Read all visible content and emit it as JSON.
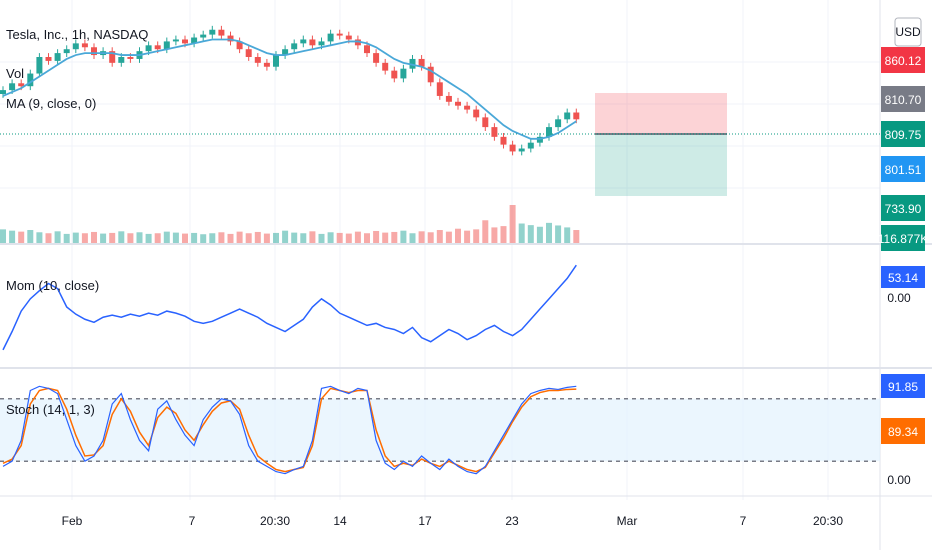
{
  "header": {
    "symbol": "Tesla, Inc., 1h, NASDAQ",
    "vol_label": "Vol",
    "ma_label": "MA (9, close, 0)"
  },
  "currency_label": "USD",
  "price_tags": [
    {
      "value": "860.12",
      "color": "#f23645"
    },
    {
      "value": "810.70",
      "color": "#787b86"
    },
    {
      "value": "809.75",
      "color": "#089981"
    },
    {
      "value": "801.51",
      "color": "#2196f3"
    },
    {
      "value": "733.90",
      "color": "#089981"
    },
    {
      "value": "116.877K",
      "color": "#089981"
    }
  ],
  "panes": {
    "mom_label": "Mom (10, close)",
    "mom_value": "53.14",
    "mom_axis": "0.00",
    "stoch_label": "Stoch (14, 1, 3)",
    "stoch_k": "91.85",
    "stoch_d": "89.34",
    "stoch_axis": "0.00"
  },
  "time_axis": [
    "Feb",
    "7",
    "20:30",
    "14",
    "17",
    "23",
    "Mar",
    "7",
    "20:30"
  ],
  "colors": {
    "up": "#26a69a",
    "down": "#ef5350",
    "ma": "#4aa8d8",
    "mom": "#2962ff",
    "stoch_k": "#2962ff",
    "stoch_d": "#ff6d00",
    "band": "#e3f2fd"
  },
  "chart_data": {
    "type": "line",
    "close": [
      838,
      845,
      842,
      855,
      872,
      868,
      876,
      880,
      886,
      882,
      874,
      878,
      866,
      872,
      870,
      878,
      884,
      880,
      888,
      890,
      886,
      892,
      895,
      900,
      894,
      888,
      880,
      872,
      866,
      862,
      874,
      880,
      886,
      890,
      884,
      888,
      896,
      894,
      890,
      884,
      876,
      866,
      858,
      850,
      860,
      870,
      862,
      846,
      832,
      826,
      822,
      818,
      810,
      800,
      790,
      782,
      775,
      778,
      784,
      790,
      800,
      808,
      815,
      808
    ],
    "ma9": [
      832,
      836,
      840,
      846,
      852,
      858,
      864,
      870,
      874,
      876,
      876,
      876,
      876,
      874,
      874,
      874,
      876,
      878,
      880,
      882,
      884,
      886,
      888,
      890,
      890,
      890,
      888,
      884,
      880,
      876,
      874,
      874,
      876,
      878,
      880,
      882,
      884,
      886,
      888,
      888,
      886,
      882,
      876,
      870,
      866,
      864,
      862,
      858,
      852,
      846,
      840,
      834,
      826,
      818,
      810,
      802,
      796,
      792,
      788,
      788,
      790,
      794,
      800,
      806
    ],
    "volume_k": [
      42,
      38,
      35,
      40,
      33,
      30,
      36,
      28,
      32,
      30,
      34,
      29,
      31,
      36,
      30,
      33,
      28,
      30,
      35,
      32,
      29,
      31,
      27,
      30,
      33,
      28,
      35,
      30,
      34,
      29,
      31,
      38,
      32,
      30,
      36,
      28,
      33,
      31,
      29,
      35,
      30,
      37,
      32,
      34,
      38,
      30,
      36,
      33,
      40,
      35,
      44,
      38,
      42,
      70,
      48,
      52,
      117,
      60,
      55,
      50,
      62,
      54,
      48,
      40
    ],
    "momentum": [
      -30,
      -12,
      8,
      20,
      28,
      35,
      30,
      12,
      5,
      0,
      -3,
      2,
      4,
      2,
      5,
      3,
      6,
      4,
      8,
      6,
      3,
      -2,
      -4,
      -2,
      2,
      6,
      10,
      6,
      2,
      -4,
      -8,
      -12,
      -6,
      0,
      12,
      20,
      14,
      6,
      2,
      -2,
      -6,
      -4,
      -8,
      -10,
      -14,
      -8,
      -18,
      -22,
      -16,
      -10,
      -14,
      -20,
      -16,
      -10,
      -6,
      -12,
      -16,
      -10,
      0,
      10,
      20,
      30,
      40,
      53
    ],
    "stoch_k": [
      15,
      20,
      40,
      88,
      92,
      90,
      85,
      60,
      35,
      20,
      25,
      40,
      75,
      85,
      60,
      40,
      30,
      70,
      78,
      60,
      45,
      35,
      60,
      72,
      80,
      78,
      65,
      35,
      20,
      15,
      10,
      8,
      12,
      15,
      40,
      90,
      92,
      88,
      85,
      90,
      88,
      40,
      18,
      12,
      20,
      15,
      25,
      18,
      12,
      22,
      15,
      10,
      8,
      15,
      30,
      45,
      60,
      75,
      85,
      88,
      90,
      89,
      91,
      92
    ],
    "stoch_d": [
      18,
      22,
      35,
      75,
      88,
      90,
      88,
      70,
      45,
      25,
      26,
      35,
      65,
      80,
      68,
      48,
      35,
      62,
      72,
      66,
      50,
      40,
      55,
      68,
      76,
      78,
      70,
      45,
      25,
      18,
      12,
      10,
      12,
      14,
      35,
      80,
      90,
      88,
      86,
      88,
      88,
      50,
      25,
      15,
      18,
      16,
      22,
      18,
      15,
      20,
      16,
      12,
      10,
      14,
      28,
      42,
      58,
      72,
      82,
      86,
      88,
      88,
      89,
      89.34
    ],
    "stoch_levels": [
      80,
      20
    ],
    "x_labels": [
      "Feb",
      "7",
      "20:30",
      "14",
      "17",
      "23",
      "Mar",
      "7",
      "20:30"
    ],
    "position": {
      "target": 860.12,
      "entry": 809.75,
      "stop": 733.9
    }
  }
}
